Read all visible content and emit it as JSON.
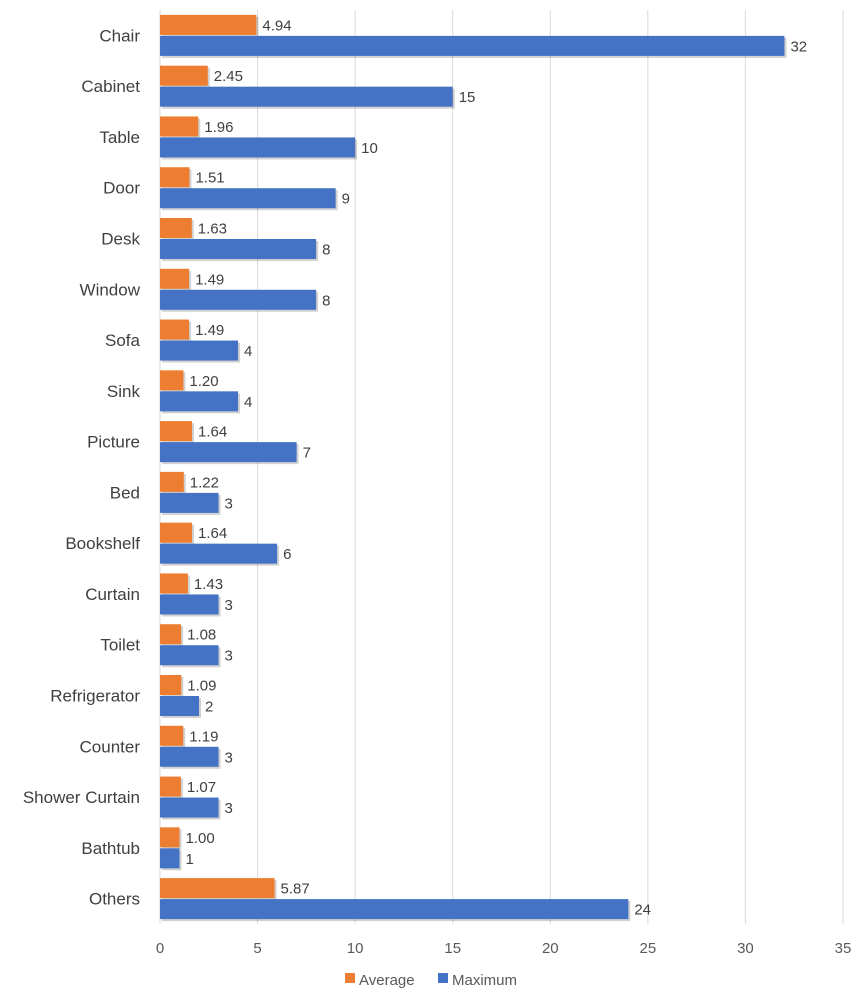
{
  "chart_data": {
    "type": "bar",
    "orientation": "horizontal",
    "categories": [
      "Chair",
      "Cabinet",
      "Table",
      "Door",
      "Desk",
      "Window",
      "Sofa",
      "Sink",
      "Picture",
      "Bed",
      "Bookshelf",
      "Curtain",
      "Toilet",
      "Refrigerator",
      "Counter",
      "Shower Curtain",
      "Bathtub",
      "Others"
    ],
    "series": [
      {
        "name": "Average",
        "color": "#ED7D31",
        "values": [
          4.94,
          2.45,
          1.96,
          1.51,
          1.63,
          1.49,
          1.49,
          1.2,
          1.64,
          1.22,
          1.64,
          1.43,
          1.08,
          1.09,
          1.19,
          1.07,
          1.0,
          5.87
        ],
        "labels": [
          "4.94",
          "2.45",
          "1.96",
          "1.51",
          "1.63",
          "1.49",
          "1.49",
          "1.20",
          "1.64",
          "1.22",
          "1.64",
          "1.43",
          "1.08",
          "1.09",
          "1.19",
          "1.07",
          "1.00",
          "5.87"
        ]
      },
      {
        "name": "Maximum",
        "color": "#4472C4",
        "values": [
          32,
          15,
          10,
          9,
          8,
          8,
          4,
          4,
          7,
          3,
          6,
          3,
          3,
          2,
          3,
          3,
          1,
          24
        ],
        "labels": [
          "32",
          "15",
          "10",
          "9",
          "8",
          "8",
          "4",
          "4",
          "7",
          "3",
          "6",
          "3",
          "3",
          "2",
          "3",
          "3",
          "1",
          "24"
        ]
      }
    ],
    "xlim": [
      0,
      35
    ],
    "xticks": [
      "0",
      "5",
      "10",
      "15",
      "20",
      "25",
      "30",
      "35"
    ],
    "grid": true,
    "legend": "bottom",
    "title": "",
    "xlabel": "",
    "ylabel": ""
  }
}
